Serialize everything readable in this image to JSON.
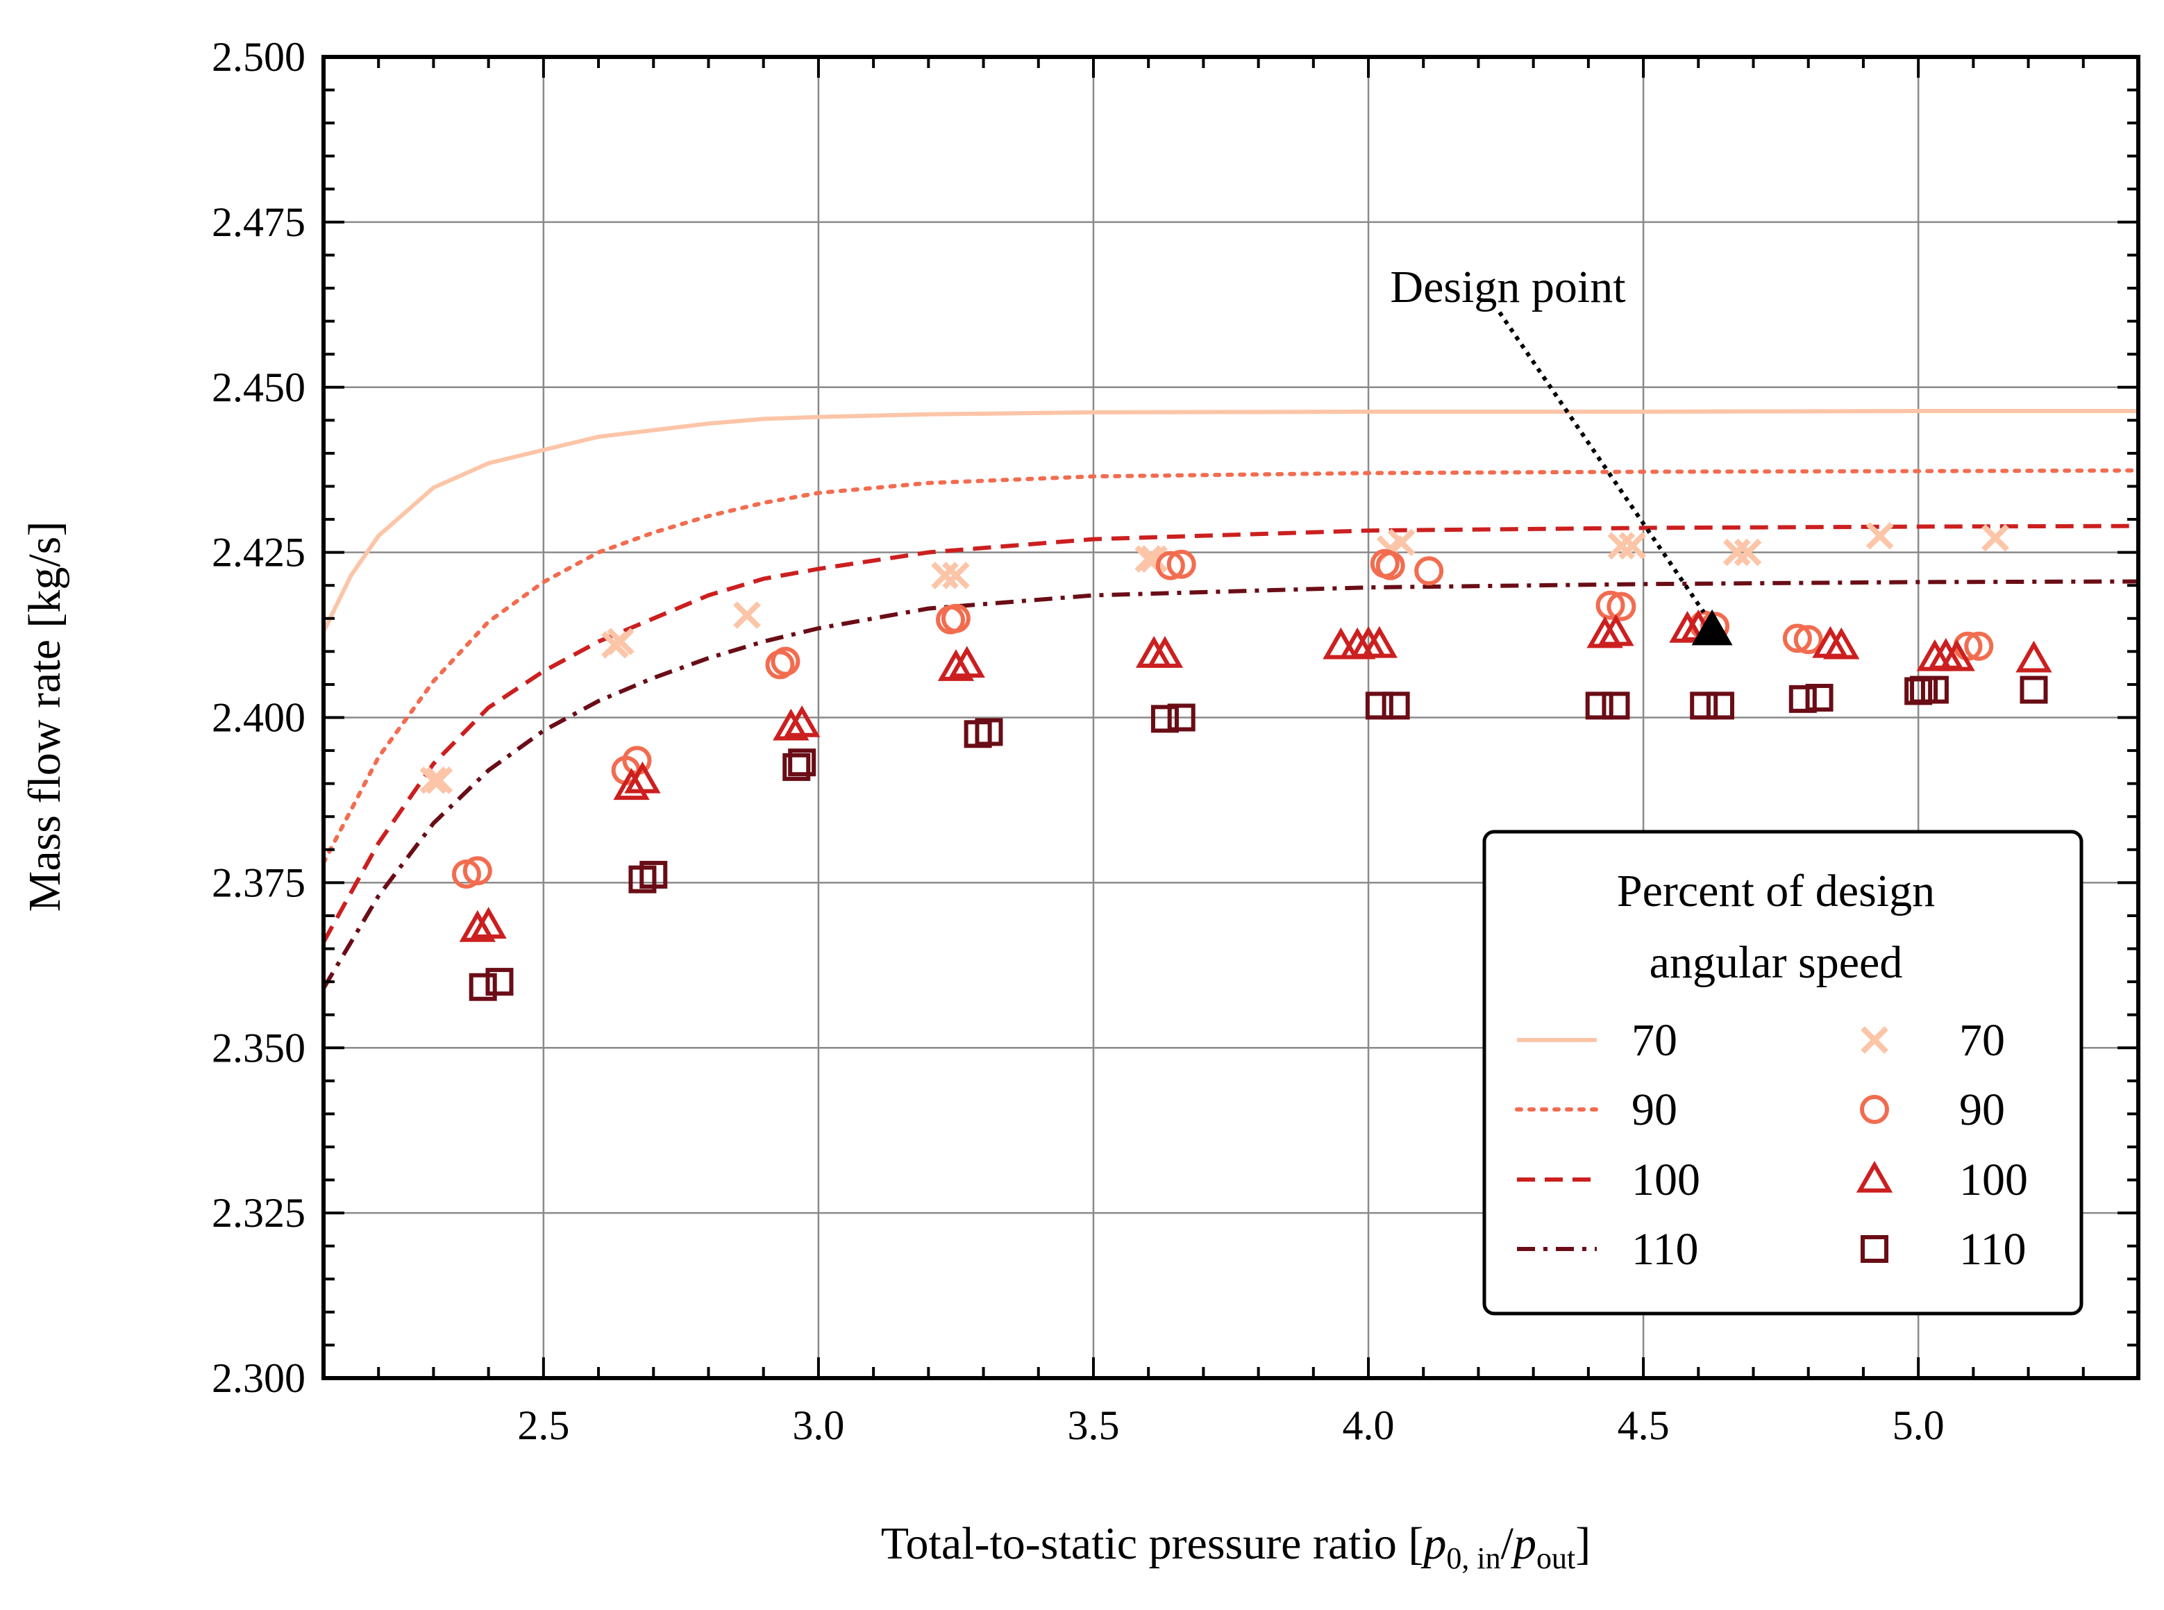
{
  "chart_data": {
    "type": "line",
    "title": "",
    "xlabel_parts": [
      "Total-to-static pressure ratio [",
      "p",
      "0, in",
      "/",
      "p",
      "out",
      "]"
    ],
    "ylabel": "Mass flow rate [kg/s]",
    "xlim": [
      2.1,
      5.4
    ],
    "ylim": [
      2.3,
      2.5
    ],
    "xticks": [
      2.5,
      3.0,
      3.5,
      4.0,
      4.5,
      5.0
    ],
    "xtick_labels": [
      "2.5",
      "3.0",
      "3.5",
      "4.0",
      "4.5",
      "5.0"
    ],
    "yticks": [
      2.3,
      2.325,
      2.35,
      2.375,
      2.4,
      2.425,
      2.45,
      2.475,
      2.5
    ],
    "ytick_labels": [
      "2.300",
      "2.325",
      "2.350",
      "2.375",
      "2.400",
      "2.425",
      "2.450",
      "2.475",
      "2.500"
    ],
    "grid": true,
    "legend": {
      "placement": "lower-right",
      "title_lines": [
        "Percent of design",
        "angular speed"
      ],
      "line_labels": [
        "70",
        "90",
        "100",
        "110"
      ],
      "marker_labels": [
        "70",
        "90",
        "100",
        "110"
      ]
    },
    "line_series": [
      {
        "name": "70",
        "color": "#fcc5a8",
        "dash": "solid",
        "x": [
          2.1,
          2.15,
          2.2,
          2.3,
          2.4,
          2.5,
          2.6,
          2.7,
          2.8,
          2.9,
          3.0,
          3.2,
          3.5,
          4.0,
          4.5,
          5.0,
          5.4
        ],
        "y": [
          2.413,
          2.4215,
          2.4275,
          2.4348,
          2.4385,
          2.4405,
          2.4425,
          2.4435,
          2.4445,
          2.4452,
          2.4455,
          2.4459,
          2.4462,
          2.4463,
          2.4463,
          2.4464,
          2.4464
        ]
      },
      {
        "name": "90",
        "color": "#f26c4f",
        "dash": "dotted",
        "x": [
          2.1,
          2.2,
          2.3,
          2.4,
          2.5,
          2.6,
          2.7,
          2.8,
          2.9,
          3.0,
          3.2,
          3.5,
          4.0,
          4.5,
          5.0,
          5.4
        ],
        "y": [
          2.378,
          2.394,
          2.4055,
          2.4145,
          2.4205,
          2.425,
          2.428,
          2.4305,
          2.4325,
          2.434,
          2.4355,
          2.4365,
          2.437,
          2.4372,
          2.4373,
          2.4374
        ]
      },
      {
        "name": "100",
        "color": "#cc1f1f",
        "dash": "dashed",
        "x": [
          2.1,
          2.2,
          2.3,
          2.4,
          2.5,
          2.6,
          2.7,
          2.8,
          2.9,
          3.0,
          3.2,
          3.5,
          4.0,
          4.5,
          5.0,
          5.4
        ],
        "y": [
          2.366,
          2.381,
          2.393,
          2.4015,
          2.407,
          2.4115,
          2.415,
          2.4185,
          2.421,
          2.4225,
          2.425,
          2.427,
          2.4283,
          2.4287,
          2.4289,
          2.429
        ]
      },
      {
        "name": "110",
        "color": "#6a0d16",
        "dash": "dashdot",
        "x": [
          2.1,
          2.2,
          2.3,
          2.4,
          2.5,
          2.6,
          2.7,
          2.8,
          2.9,
          3.0,
          3.2,
          3.5,
          4.0,
          4.5,
          5.0,
          5.4
        ],
        "y": [
          2.359,
          2.373,
          2.384,
          2.392,
          2.398,
          2.4025,
          2.406,
          2.409,
          2.4115,
          2.4135,
          2.4165,
          2.4185,
          2.4197,
          2.4202,
          2.4205,
          2.4206
        ]
      }
    ],
    "marker_series": [
      {
        "name": "70",
        "marker": "x",
        "color": "#fcc5a8",
        "x": [
          2.3,
          2.31,
          2.63,
          2.64,
          2.87,
          3.23,
          3.25,
          3.6,
          3.61,
          4.04,
          4.06,
          4.46,
          4.48,
          4.67,
          4.69,
          4.93,
          5.14
        ],
        "y": [
          2.3905,
          2.3905,
          2.411,
          2.4115,
          2.4155,
          2.4215,
          2.4215,
          2.424,
          2.424,
          2.4255,
          2.4265,
          2.426,
          2.426,
          2.425,
          2.425,
          2.4275,
          2.4272
        ]
      },
      {
        "name": "90",
        "marker": "circle",
        "color": "#f26c4f",
        "x": [
          2.36,
          2.38,
          2.65,
          2.67,
          2.93,
          2.94,
          3.24,
          3.25,
          3.64,
          3.66,
          4.03,
          4.04,
          4.11,
          4.44,
          4.46,
          4.61,
          4.63,
          4.78,
          4.8,
          5.09,
          5.11
        ],
        "y": [
          2.3763,
          2.3768,
          2.392,
          2.3935,
          2.408,
          2.4085,
          2.4148,
          2.415,
          2.423,
          2.4232,
          2.4233,
          2.423,
          2.4222,
          2.417,
          2.4168,
          2.414,
          2.4138,
          2.412,
          2.4118,
          2.4108,
          2.4108
        ]
      },
      {
        "name": "100",
        "marker": "triangle",
        "color": "#cc1f1f",
        "x": [
          2.38,
          2.4,
          2.66,
          2.68,
          2.95,
          2.97,
          3.25,
          3.27,
          3.61,
          3.63,
          3.95,
          3.98,
          4.0,
          4.02,
          4.43,
          4.45,
          4.58,
          4.6,
          4.84,
          4.86,
          5.03,
          5.05,
          5.07,
          5.21
        ],
        "y": [
          2.368,
          2.3685,
          2.3895,
          2.3905,
          2.3985,
          2.399,
          2.4075,
          2.408,
          2.4095,
          2.4095,
          2.4108,
          2.4108,
          2.411,
          2.411,
          2.4125,
          2.4128,
          2.4133,
          2.4135,
          2.411,
          2.4108,
          2.409,
          2.4092,
          2.409,
          2.4088
        ]
      },
      {
        "name": "110",
        "marker": "square",
        "color": "#6a0d16",
        "x": [
          2.39,
          2.42,
          2.68,
          2.7,
          2.96,
          2.97,
          3.29,
          3.31,
          3.63,
          3.66,
          4.02,
          4.05,
          4.42,
          4.45,
          4.61,
          4.64,
          4.79,
          4.82,
          5.0,
          5.01,
          5.03,
          5.21
        ],
        "y": [
          2.3592,
          2.36,
          2.3755,
          2.3762,
          2.3925,
          2.3932,
          2.3975,
          2.3978,
          2.3998,
          2.4,
          2.4018,
          2.4018,
          2.4018,
          2.4018,
          2.4018,
          2.4018,
          2.4028,
          2.403,
          2.404,
          2.4042,
          2.4042,
          2.4042
        ]
      }
    ],
    "design_point": {
      "x": 4.625,
      "y": 2.4132,
      "label": "Design point",
      "color": "#000000"
    }
  }
}
